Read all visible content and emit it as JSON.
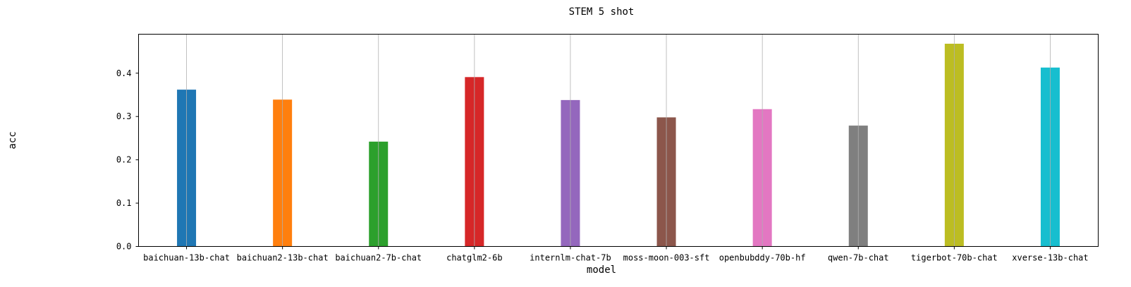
{
  "chart_data": {
    "type": "bar",
    "title": "STEM 5 shot",
    "xlabel": "model",
    "ylabel": "acc",
    "categories": [
      "baichuan-13b-chat",
      "baichuan2-13b-chat",
      "baichuan2-7b-chat",
      "chatglm2-6b",
      "internlm-chat-7b",
      "moss-moon-003-sft",
      "openbubddy-70b-hf",
      "qwen-7b-chat",
      "tigerbot-70b-chat",
      "xverse-13b-chat"
    ],
    "values": [
      0.362,
      0.339,
      0.242,
      0.391,
      0.338,
      0.298,
      0.317,
      0.279,
      0.468,
      0.413
    ],
    "colors": [
      "#1f77b4",
      "#ff7f0e",
      "#2ca02c",
      "#d62728",
      "#9467bd",
      "#8c564b",
      "#e377c2",
      "#7f7f7f",
      "#bcbd22",
      "#17becf"
    ],
    "ylim": [
      0,
      0.49
    ],
    "yticks": [
      0.0,
      0.1,
      0.2,
      0.3,
      0.4
    ],
    "ytick_labels": [
      "0.0",
      "0.1",
      "0.2",
      "0.3",
      "0.4"
    ],
    "grid": "vertical",
    "legend": "none"
  }
}
